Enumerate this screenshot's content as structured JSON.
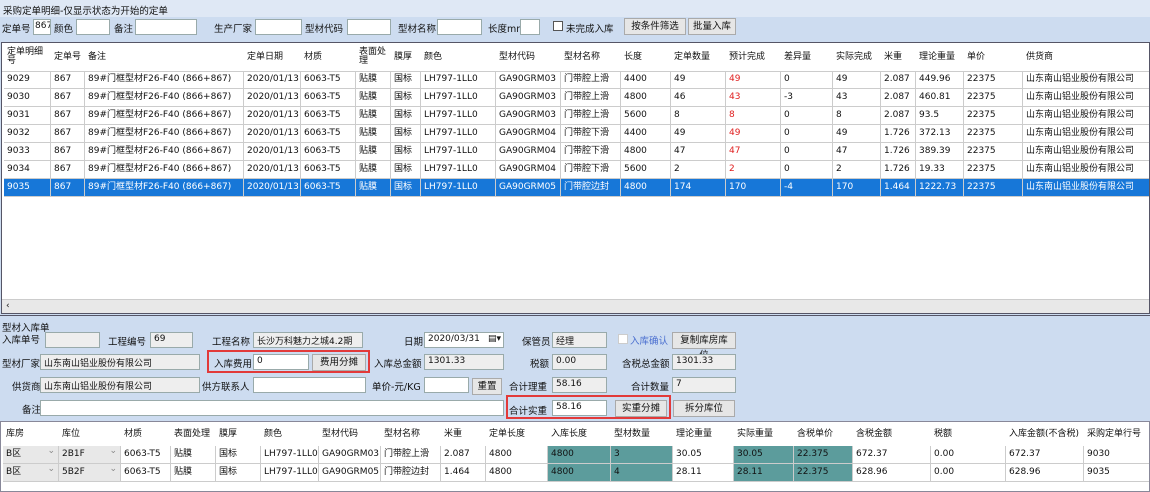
{
  "title": "采购定单明细-仅显示状态为开始的定单",
  "filters": {
    "order_no_label": "定单号",
    "order_no": "867",
    "color_label": "颜色",
    "remark_label": "备注",
    "maker_label": "生产厂家",
    "code_label": "型材代码",
    "name_label": "型材名称",
    "length_label": "长度mm",
    "unfinished_label": "未完成入库",
    "filter_btn": "按条件筛选",
    "batch_btn": "批量入库"
  },
  "order_grid": {
    "columns": [
      "定单明细号",
      "定单号",
      "备注",
      "定单日期",
      "材质",
      "表面处理",
      "膜厚",
      "颜色",
      "型材代码",
      "型材名称",
      "长度",
      "定单数量",
      "预计完成",
      "差异量",
      "实际完成",
      "米重",
      "理论重量",
      "单价",
      "供货商"
    ],
    "rows": [
      [
        "9029",
        "867",
        "89#门框型材F26-F40 (866+867)",
        "2020/01/13",
        "6063-T5",
        "贴膜",
        "国标",
        "LH797-1LL0",
        "GA90GRM03",
        "门带腔上滑",
        "4400",
        "49",
        "49",
        "0",
        "49",
        "2.087",
        "449.96",
        "22375",
        "山东南山铝业股份有限公司"
      ],
      [
        "9030",
        "867",
        "89#门框型材F26-F40 (866+867)",
        "2020/01/13",
        "6063-T5",
        "贴膜",
        "国标",
        "LH797-1LL0",
        "GA90GRM03",
        "门带腔上滑",
        "4800",
        "46",
        "43",
        "-3",
        "43",
        "2.087",
        "460.81",
        "22375",
        "山东南山铝业股份有限公司"
      ],
      [
        "9031",
        "867",
        "89#门框型材F26-F40 (866+867)",
        "2020/01/13",
        "6063-T5",
        "贴膜",
        "国标",
        "LH797-1LL0",
        "GA90GRM03",
        "门带腔上滑",
        "5600",
        "8",
        "8",
        "0",
        "8",
        "2.087",
        "93.5",
        "22375",
        "山东南山铝业股份有限公司"
      ],
      [
        "9032",
        "867",
        "89#门框型材F26-F40 (866+867)",
        "2020/01/13",
        "6063-T5",
        "贴膜",
        "国标",
        "LH797-1LL0",
        "GA90GRM04",
        "门带腔下滑",
        "4400",
        "49",
        "49",
        "0",
        "49",
        "1.726",
        "372.13",
        "22375",
        "山东南山铝业股份有限公司"
      ],
      [
        "9033",
        "867",
        "89#门框型材F26-F40 (866+867)",
        "2020/01/13",
        "6063-T5",
        "贴膜",
        "国标",
        "LH797-1LL0",
        "GA90GRM04",
        "门带腔下滑",
        "4800",
        "47",
        "47",
        "0",
        "47",
        "1.726",
        "389.39",
        "22375",
        "山东南山铝业股份有限公司"
      ],
      [
        "9034",
        "867",
        "89#门框型材F26-F40 (866+867)",
        "2020/01/13",
        "6063-T5",
        "贴膜",
        "国标",
        "LH797-1LL0",
        "GA90GRM04",
        "门带腔下滑",
        "5600",
        "2",
        "2",
        "0",
        "2",
        "1.726",
        "19.33",
        "22375",
        "山东南山铝业股份有限公司"
      ],
      [
        "9035",
        "867",
        "89#门框型材F26-F40 (866+867)",
        "2020/01/13",
        "6063-T5",
        "贴膜",
        "国标",
        "LH797-1LL0",
        "GA90GRM05",
        "门带腔边封",
        "4800",
        "174",
        "170",
        "-4",
        "170",
        "1.464",
        "1222.73",
        "22375",
        "山东南山铝业股份有限公司"
      ]
    ],
    "selected_row": 6,
    "red_column": 12
  },
  "form": {
    "section_title": "型材入库单",
    "in_no_label": "入库单号",
    "in_no": "",
    "proj_no_label": "工程编号",
    "proj_no": "69",
    "proj_name_label": "工程名称",
    "proj_name": "长沙万科魅力之城4.2期",
    "date_label": "日期",
    "date": "2020/03/31",
    "keeper_label": "保管员",
    "keeper": "经理",
    "confirm_label": "入库确认",
    "copy_btn": "复制库房库位",
    "maker_label": "型材厂家",
    "maker": "山东南山铝业股份有限公司",
    "fee_label": "入库费用",
    "fee": "0",
    "fee_btn": "费用分摊",
    "total_label": "入库总金额",
    "total": "1301.33",
    "tax_label": "税额",
    "tax": "0.00",
    "taxed_total_label": "含税总金额",
    "taxed_total": "1301.33",
    "supplier_label": "供货商",
    "supplier": "山东南山铝业股份有限公司",
    "contact_label": "供方联系人",
    "contact": "",
    "unit_price_label": "单价-元/KG",
    "unit_price": "",
    "reset_btn": "重置",
    "theo_weight_label": "合计理重",
    "theo_weight": "58.16",
    "qty_label": "合计数量",
    "qty": "7",
    "remark_label": "备注",
    "remark": "",
    "actual_weight_label": "合计实重",
    "actual_weight": "58.16",
    "actual_btn": "实重分摊",
    "split_btn": "拆分库位"
  },
  "in_grid": {
    "columns": [
      "库房",
      "库位",
      "材质",
      "表面处理",
      "膜厚",
      "颜色",
      "型材代码",
      "型材名称",
      "米重",
      "定单长度",
      "入库长度",
      "型材数量",
      "理论重量",
      "实际重量",
      "含税单价",
      "含税金额",
      "税额",
      "入库金额(不含税)",
      "采购定单行号"
    ],
    "rows": [
      [
        "B区",
        "2B1F",
        "6063-T5",
        "贴膜",
        "国标",
        "LH797-1LL0",
        "GA90GRM03",
        "门带腔上滑",
        "2.087",
        "4800",
        "4800",
        "3",
        "30.05",
        "30.05",
        "22.375",
        "672.37",
        "0.00",
        "672.37",
        "9030"
      ],
      [
        "B区",
        "5B2F",
        "6063-T5",
        "贴膜",
        "国标",
        "LH797-1LL0",
        "GA90GRM05",
        "门带腔边封",
        "1.464",
        "4800",
        "4800",
        "4",
        "28.11",
        "28.11",
        "22.375",
        "628.96",
        "0.00",
        "628.96",
        "9035"
      ]
    ],
    "teal_columns": [
      10,
      11,
      13,
      14
    ],
    "teal_color": "#5c9c9c"
  }
}
